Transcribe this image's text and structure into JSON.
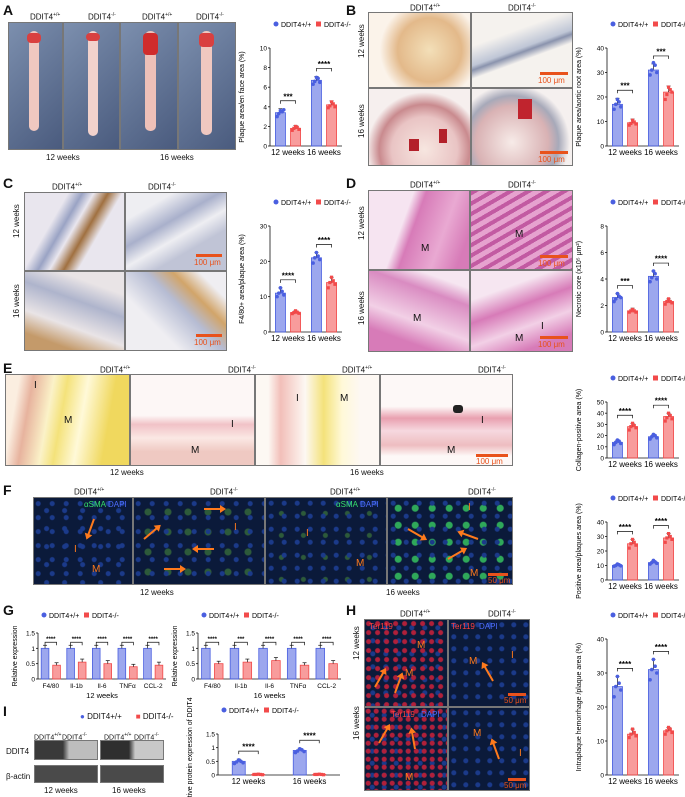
{
  "colors": {
    "blue": "#4a5fe0",
    "red": "#f24a4a",
    "ihc_brown": "#b2762e",
    "he_pink": "#d77bb8",
    "sirius_yellow": "#f4e27a",
    "if_bg": "#0b1a3a",
    "arrow": "#ff7a1c"
  },
  "labels": {
    "wt": "DDIT4",
    "wt_sup": "+/+",
    "ko": "DDIT4",
    "ko_sup": "-/-",
    "w12": "12 weeks",
    "w16": "16 weeks",
    "scale100": "100 μm",
    "scale50": "50 μm",
    "M": "M",
    "I": "I",
    "aSMA": "αSMA",
    "DAPI": "DAPI",
    "Ter119": "Ter119",
    "ddit4_band": "DDIT4",
    "actin_band": "β-actin"
  },
  "panels": {
    "A": "A",
    "B": "B",
    "C": "C",
    "D": "D",
    "E": "E",
    "F": "F",
    "G": "G",
    "H": "H",
    "I": "I"
  },
  "legend": {
    "wt": "DDIT4+/+",
    "ko": "DDIT4-/-"
  },
  "chart_data": [
    {
      "id": "A",
      "type": "bar",
      "categories": [
        "12 weeks",
        "16 weeks"
      ],
      "ylabel": "Plaque area/en face area (%)",
      "ylim": [
        0,
        10
      ],
      "yticks": [
        0,
        2,
        4,
        6,
        8,
        10
      ],
      "series": [
        {
          "name": "DDIT4+/+",
          "values": [
            3.4,
            6.7
          ],
          "err": [
            0.4,
            0.4
          ],
          "points": [
            [
              3.0,
              3.3,
              3.6,
              3.5,
              3.7
            ],
            [
              6.3,
              6.6,
              7.0,
              6.9,
              6.5
            ]
          ]
        },
        {
          "name": "DDIT4-/-",
          "values": [
            1.8,
            4.2
          ],
          "err": [
            0.3,
            0.4
          ],
          "points": [
            [
              1.6,
              1.8,
              2.0,
              1.9,
              1.7
            ],
            [
              3.9,
              4.1,
              4.5,
              4.3,
              4.0
            ]
          ]
        }
      ],
      "sig": [
        "***",
        "****"
      ]
    },
    {
      "id": "B",
      "type": "bar",
      "categories": [
        "12 weeks",
        "16 weeks"
      ],
      "ylabel": "Plaque area/aortic root area (%)",
      "ylim": [
        0,
        40
      ],
      "yticks": [
        0,
        10,
        20,
        30,
        40
      ],
      "series": [
        {
          "name": "DDIT4+/+",
          "values": [
            17,
            31
          ],
          "err": [
            2.5,
            2.5
          ],
          "points": [
            [
              15,
              17,
              19,
              18,
              16
            ],
            [
              29,
              31,
              34,
              33,
              30
            ]
          ]
        },
        {
          "name": "DDIT4-/-",
          "values": [
            9.5,
            22
          ],
          "err": [
            1.5,
            2.5
          ],
          "points": [
            [
              8.5,
              9.2,
              10.5,
              9.8,
              9.0
            ],
            [
              19,
              21,
              24,
              23,
              22
            ]
          ]
        }
      ],
      "sig": [
        "***",
        "***"
      ]
    },
    {
      "id": "C",
      "type": "bar",
      "categories": [
        "12 weeks",
        "16 weeks"
      ],
      "ylabel": "F4/80+ area/plaque area (%)",
      "ylim": [
        0,
        30
      ],
      "yticks": [
        0,
        10,
        20,
        30
      ],
      "series": [
        {
          "name": "DDIT4+/+",
          "values": [
            11,
            21
          ],
          "err": [
            1.5,
            1.5
          ],
          "points": [
            [
              10,
              11,
              12.5,
              11.5,
              10.5
            ],
            [
              19.5,
              21,
              22.5,
              21.5,
              20.5
            ]
          ]
        },
        {
          "name": "DDIT4-/-",
          "values": [
            5.5,
            14
          ],
          "err": [
            0.5,
            1.5
          ],
          "points": [
            [
              5.2,
              5.5,
              6.0,
              5.6,
              5.3
            ],
            [
              12.5,
              14,
              15.5,
              14.5,
              13.5
            ]
          ]
        }
      ],
      "sig": [
        "****",
        "****"
      ]
    },
    {
      "id": "D",
      "type": "bar",
      "categories": [
        "12 weeks",
        "16 weeks"
      ],
      "ylabel": "Necrotic core (x10⁵ μm²)",
      "ylim": [
        0,
        8
      ],
      "yticks": [
        0,
        2,
        4,
        6,
        8
      ],
      "series": [
        {
          "name": "DDIT4+/+",
          "values": [
            2.6,
            4.2
          ],
          "err": [
            0.3,
            0.4
          ],
          "points": [
            [
              2.3,
              2.5,
              2.9,
              2.7,
              2.6
            ],
            [
              3.8,
              4.1,
              4.6,
              4.4,
              4.0
            ]
          ]
        },
        {
          "name": "DDIT4-/-",
          "values": [
            1.6,
            2.3
          ],
          "err": [
            0.2,
            0.2
          ],
          "points": [
            [
              1.5,
              1.6,
              1.7,
              1.6,
              1.5
            ],
            [
              2.1,
              2.3,
              2.5,
              2.3,
              2.2
            ]
          ]
        }
      ],
      "sig": [
        "***",
        "****"
      ]
    },
    {
      "id": "E",
      "type": "bar",
      "categories": [
        "12 weeks",
        "16 weeks"
      ],
      "ylabel": "Collagen-positive area (%)",
      "ylim": [
        0,
        50
      ],
      "yticks": [
        0,
        10,
        20,
        30,
        40,
        50
      ],
      "series": [
        {
          "name": "DDIT4+/+",
          "values": [
            14,
            19
          ],
          "err": [
            2,
            2
          ],
          "points": [
            [
              12,
              14,
              16,
              15,
              13
            ],
            [
              17,
              19,
              21,
              20,
              18
            ]
          ]
        },
        {
          "name": "DDIT4-/-",
          "values": [
            28,
            37
          ],
          "err": [
            3,
            3
          ],
          "points": [
            [
              25,
              28,
              31,
              29,
              27
            ],
            [
              33,
              36,
              40,
              38,
              35
            ]
          ]
        }
      ],
      "sig": [
        "****",
        "****"
      ]
    },
    {
      "id": "F",
      "type": "bar",
      "categories": [
        "12 weeks",
        "16 weeks"
      ],
      "ylabel": "Positive area/plaques area (%)",
      "ylim": [
        0,
        40
      ],
      "yticks": [
        0,
        10,
        20,
        30,
        40
      ],
      "series": [
        {
          "name": "DDIT4+/+",
          "values": [
            10,
            12
          ],
          "err": [
            1,
            1.5
          ],
          "points": [
            [
              9.5,
              10,
              11,
              10.5,
              9.8
            ],
            [
              11,
              12,
              13.5,
              12.5,
              11.5
            ]
          ]
        },
        {
          "name": "DDIT4-/-",
          "values": [
            25,
            29
          ],
          "err": [
            3,
            3
          ],
          "points": [
            [
              22,
              25,
              28,
              26,
              24
            ],
            [
              26,
              29,
              32,
              30,
              28
            ]
          ]
        }
      ],
      "sig": [
        "****",
        "****"
      ]
    },
    {
      "id": "G12",
      "type": "bar",
      "xlabel": "12 weeks",
      "categories": [
        "F4/80",
        "Il-1b",
        "Il-6",
        "TNFα",
        "CCL-2"
      ],
      "ylabel": "Relative expression",
      "ylim": [
        0,
        1.5
      ],
      "yticks": [
        0,
        0.5,
        1.0,
        1.5
      ],
      "series": [
        {
          "name": "DDIT4+/+",
          "values": [
            1,
            1,
            1,
            1,
            1
          ],
          "err": [
            0.1,
            0.1,
            0.1,
            0.1,
            0.1
          ]
        },
        {
          "name": "DDIT4-/-",
          "values": [
            0.45,
            0.55,
            0.5,
            0.4,
            0.45
          ],
          "err": [
            0.08,
            0.1,
            0.1,
            0.08,
            0.1
          ]
        }
      ],
      "sig": [
        "****",
        "****",
        "****",
        "****",
        "****"
      ]
    },
    {
      "id": "G16",
      "type": "bar",
      "xlabel": "16 weeks",
      "categories": [
        "F4/80",
        "Il-1b",
        "Il-6",
        "TNFα",
        "CCL-2"
      ],
      "ylabel": "Relative expression",
      "ylim": [
        0,
        1.5
      ],
      "yticks": [
        0,
        0.5,
        1.0,
        1.5
      ],
      "series": [
        {
          "name": "DDIT4+/+",
          "values": [
            1,
            1,
            1,
            1,
            1
          ],
          "err": [
            0.1,
            0.1,
            0.1,
            0.1,
            0.1
          ]
        },
        {
          "name": "DDIT4-/-",
          "values": [
            0.5,
            0.55,
            0.6,
            0.45,
            0.5
          ],
          "err": [
            0.08,
            0.1,
            0.1,
            0.08,
            0.1
          ]
        }
      ],
      "sig": [
        "****",
        "***",
        "****",
        "****",
        "****"
      ]
    },
    {
      "id": "H",
      "type": "bar",
      "categories": [
        "12 weeks",
        "16 weeks"
      ],
      "ylabel": "Intraplaque hemorrhage /plaque area (%)",
      "ylim": [
        0,
        40
      ],
      "yticks": [
        0,
        10,
        20,
        30,
        40
      ],
      "series": [
        {
          "name": "DDIT4+/+",
          "values": [
            26,
            31
          ],
          "err": [
            3,
            3
          ],
          "points": [
            [
              23,
              26,
              29,
              27,
              25
            ],
            [
              28,
              31,
              34,
              32,
              30
            ]
          ]
        },
        {
          "name": "DDIT4-/-",
          "values": [
            12,
            13
          ],
          "err": [
            1.5,
            1
          ],
          "points": [
            [
              11,
              12,
              13.5,
              12.5,
              11.5
            ],
            [
              12,
              13,
              14,
              13.5,
              12.5
            ]
          ]
        }
      ],
      "sig": [
        "****",
        "****"
      ]
    },
    {
      "id": "I",
      "type": "bar",
      "categories": [
        "12 weeks",
        "16 weeks"
      ],
      "ylabel": "Relative protein expression of DDIT4",
      "ylim": [
        0,
        1.5
      ],
      "yticks": [
        0,
        0.5,
        1.0,
        1.5
      ],
      "series": [
        {
          "name": "DDIT4+/+",
          "values": [
            0.5,
            0.9
          ],
          "err": [
            0.08,
            0.08
          ],
          "points": [
            [
              0.42,
              0.48,
              0.55,
              0.5,
              0.45
            ],
            [
              0.82,
              0.88,
              0.96,
              0.92,
              0.86
            ]
          ]
        },
        {
          "name": "DDIT4-/-",
          "values": [
            0.02,
            0.02
          ],
          "err": [
            0.01,
            0.01
          ],
          "points": [
            [
              0.02,
              0.02,
              0.03,
              0.02,
              0.01
            ],
            [
              0.02,
              0.02,
              0.03,
              0.02,
              0.01
            ]
          ]
        }
      ],
      "sig": [
        "****",
        "****"
      ]
    }
  ]
}
